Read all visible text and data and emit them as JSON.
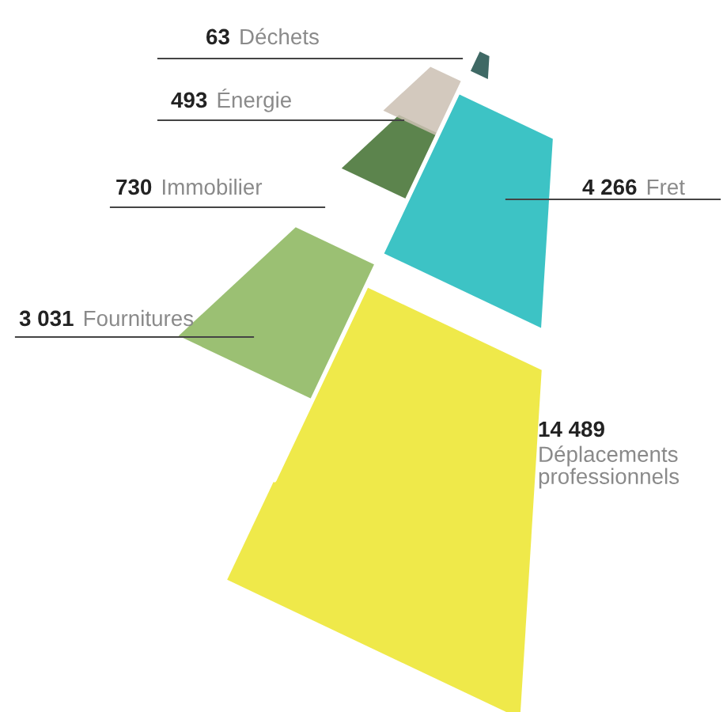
{
  "chart_data": {
    "type": "other",
    "categories": [
      "Déchets",
      "Énergie",
      "Immobilier",
      "Fret",
      "Fournitures",
      "Déplacements\nprofessionnels"
    ],
    "values": [
      63,
      493,
      730,
      4266,
      3031,
      14489
    ],
    "value_labels": [
      "63",
      "493",
      "730",
      "4 266",
      "3 031",
      "14 489"
    ],
    "colors": [
      "#1d4f4a",
      "#cbbfb3",
      "#3f6e2e",
      "#1bb8bb",
      "#8ab55a",
      "#ece52a"
    ]
  }
}
